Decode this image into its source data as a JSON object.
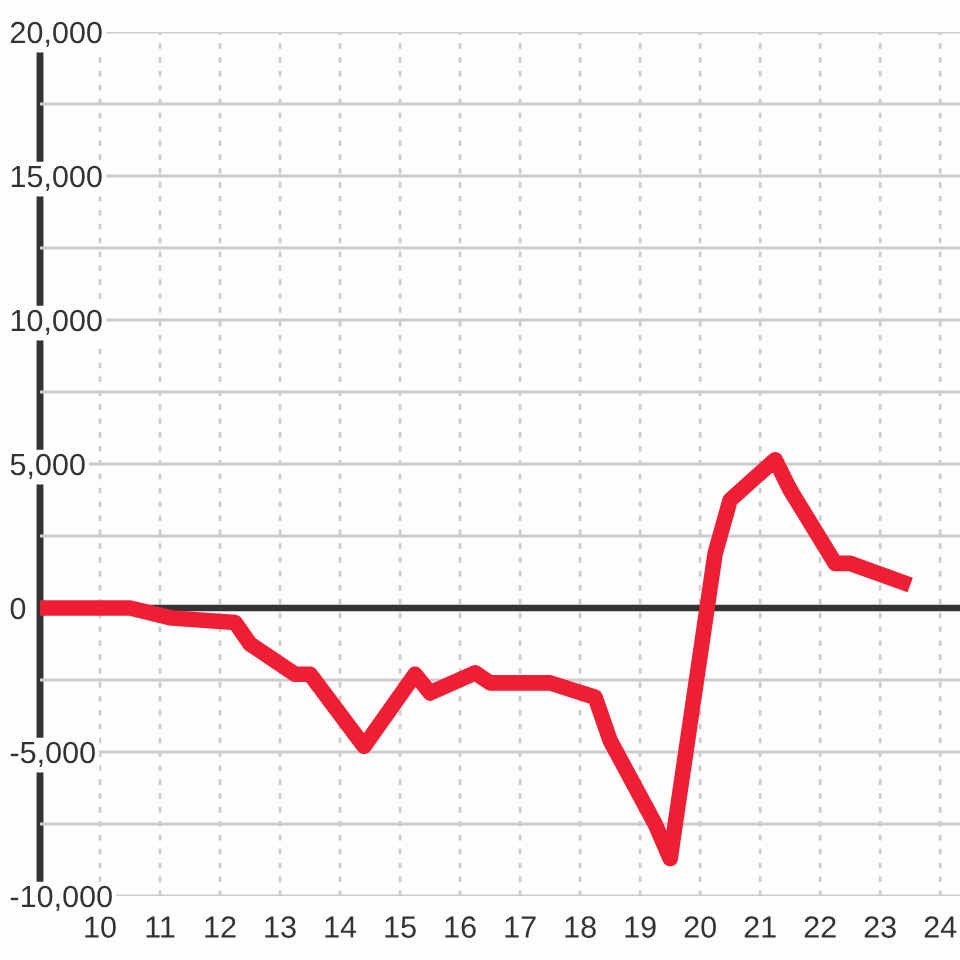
{
  "chart_data": {
    "type": "line",
    "x": [
      9,
      10.5,
      11.2,
      12.25,
      12.5,
      13.25,
      13.5,
      14.4,
      15.25,
      15.5,
      16.25,
      16.5,
      17.5,
      18.25,
      18.5,
      19.25,
      19.5,
      20.25,
      20.5,
      21.25,
      21.5,
      22.25,
      22.5,
      23.5
    ],
    "values": [
      0,
      0,
      -350,
      -500,
      -1250,
      -2300,
      -2300,
      -4800,
      -2300,
      -2950,
      -2250,
      -2600,
      -2600,
      -3100,
      -4600,
      -7500,
      -8700,
      1900,
      3750,
      5150,
      4100,
      1550,
      1550,
      800
    ],
    "color": "#ee1f35",
    "xlim": [
      9,
      24.33
    ],
    "xticks": [
      10,
      11,
      12,
      13,
      14,
      15,
      16,
      17,
      18,
      19,
      20,
      21,
      22,
      23,
      24
    ],
    "ylim": [
      -10000,
      20000
    ],
    "yticks": [
      {
        "value": -10000,
        "label": "-10,000"
      },
      {
        "value": -7500,
        "label": null
      },
      {
        "value": -5000,
        "label": "-5,000"
      },
      {
        "value": -2500,
        "label": null
      },
      0,
      {
        "value": 2500,
        "label": null
      },
      {
        "value": 5000,
        "label": "5,000"
      },
      {
        "value": 7500,
        "label": null
      },
      {
        "value": 10000,
        "label": "10,000"
      },
      {
        "value": 12500,
        "label": null
      },
      {
        "value": 15000,
        "label": "15,000"
      },
      {
        "value": 17500,
        "label": null
      },
      {
        "value": 20000,
        "label": "20,000"
      }
    ],
    "grid": true,
    "ref_lines": [
      {
        "axis": "y",
        "value": 0,
        "color": "#333333"
      }
    ],
    "marker": "none",
    "line_style": "solid"
  }
}
